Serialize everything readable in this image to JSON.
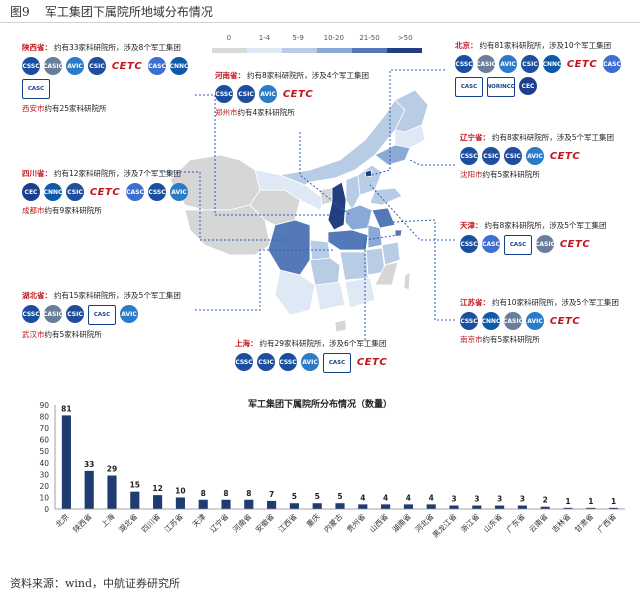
{
  "figure": {
    "number": "图9",
    "title": "军工集团下属院所地域分布情况"
  },
  "colors": {
    "accent_red": "#c0161d",
    "bar_blue": "#1e3b72",
    "leader_blue": "#2b5fb8",
    "legend": [
      "#d9d9d9",
      "#dfe8f5",
      "#b9cce6",
      "#8aa9d6",
      "#5479b8",
      "#243f80"
    ]
  },
  "legend": {
    "labels": [
      "0",
      "1-4",
      "5-9",
      "10-20",
      "21-50",
      ">50"
    ]
  },
  "callouts": [
    {
      "id": "shaanxi",
      "region": "陕西省：",
      "text": "约有33家科研院所，涉及8个军工集团",
      "logos": [
        "CSSC",
        "CASIC",
        "AVIC",
        "CSIC",
        "CETC",
        "CASC",
        "CNNC",
        "CASC"
      ],
      "sub_region": "西安市",
      "sub_text": "约有25家科研院所"
    },
    {
      "id": "henan",
      "region": "河南省：",
      "text": "约有8家科研院所，涉及4个军工集团",
      "logos": [
        "CSSC",
        "CSIC",
        "AVIC",
        "CETC"
      ],
      "sub_region": "郑州市",
      "sub_text": "约有4家科研院所"
    },
    {
      "id": "beijing",
      "region": "北京：",
      "text": "约有81家科研院所，涉及10个军工集团",
      "logos": [
        "CSSC",
        "CASIC",
        "AVIC",
        "CSIC",
        "CNNC",
        "CETC",
        "CASC",
        "CASC",
        "NORINCO",
        "CEC"
      ],
      "sub_region": "",
      "sub_text": ""
    },
    {
      "id": "sichuan",
      "region": "四川省：",
      "text": "约有12家科研院所，涉及7个军工集团",
      "logos": [
        "CEC",
        "CNNC",
        "CSIC",
        "CETC",
        "CASC",
        "CSSC",
        "AVIC"
      ],
      "sub_region": "成都市",
      "sub_text": "约有9家科研院所"
    },
    {
      "id": "liaoning",
      "region": "辽宁省：",
      "text": "约有8家科研院所，涉及5个军工集团",
      "logos": [
        "CSSC",
        "CSIC",
        "CSIC",
        "AVIC",
        "CETC"
      ],
      "sub_region": "沈阳市",
      "sub_text": "约有5家科研院所"
    },
    {
      "id": "tianjin",
      "region": "天津：",
      "text": "约有8家科研院所，涉及5个军工集团",
      "logos": [
        "CSSC",
        "CASC",
        "CASC",
        "CASIC",
        "CETC"
      ],
      "sub_region": "",
      "sub_text": ""
    },
    {
      "id": "hubei",
      "region": "湖北省：",
      "text": "约有15家科研院所，涉及5个军工集团",
      "logos": [
        "CSSC",
        "CASIC",
        "CSIC",
        "CASC",
        "AVIC"
      ],
      "sub_region": "武汉市",
      "sub_text": "约有5家科研院所"
    },
    {
      "id": "shanghai",
      "region": "上海：",
      "text": "约有29家科研院所，涉及6个军工集团",
      "logos": [
        "CSSC",
        "CSIC",
        "CSSC",
        "AVIC",
        "CASC",
        "CETC"
      ],
      "sub_region": "",
      "sub_text": ""
    },
    {
      "id": "jiangsu",
      "region": "江苏省：",
      "text": "约有10家科研院所，涉及5个军工集团",
      "logos": [
        "CSSC",
        "CNNC",
        "CASIC",
        "AVIC",
        "CETC"
      ],
      "sub_region": "南京市",
      "sub_text": "约有5家科研院所"
    }
  ],
  "chart_data": {
    "type": "bar",
    "title": "军工集团下属院所分布情况（数量）",
    "categories": [
      "北京",
      "陕西省",
      "上海",
      "湖北省",
      "四川省",
      "江苏省",
      "天津",
      "辽宁省",
      "河南省",
      "安徽省",
      "江西省",
      "重庆",
      "内蒙古",
      "贵州省",
      "山西省",
      "湖南省",
      "河北省",
      "黑龙江省",
      "浙江省",
      "山东省",
      "广东省",
      "云南省",
      "吉林省",
      "甘肃省",
      "广西省"
    ],
    "values": [
      81,
      33,
      29,
      15,
      12,
      10,
      8,
      8,
      8,
      7,
      5,
      5,
      5,
      4,
      4,
      4,
      4,
      3,
      3,
      3,
      3,
      2,
      1,
      1,
      1
    ],
    "xlabel": "",
    "ylabel": "",
    "ylim": [
      0,
      90
    ],
    "yticks": [
      0,
      10,
      20,
      30,
      40,
      50,
      60,
      70,
      80,
      90
    ],
    "grid": false,
    "bar_color": "#1e3b72"
  },
  "source": {
    "label": "资料来源：",
    "text": "wind，中航证券研究所"
  }
}
